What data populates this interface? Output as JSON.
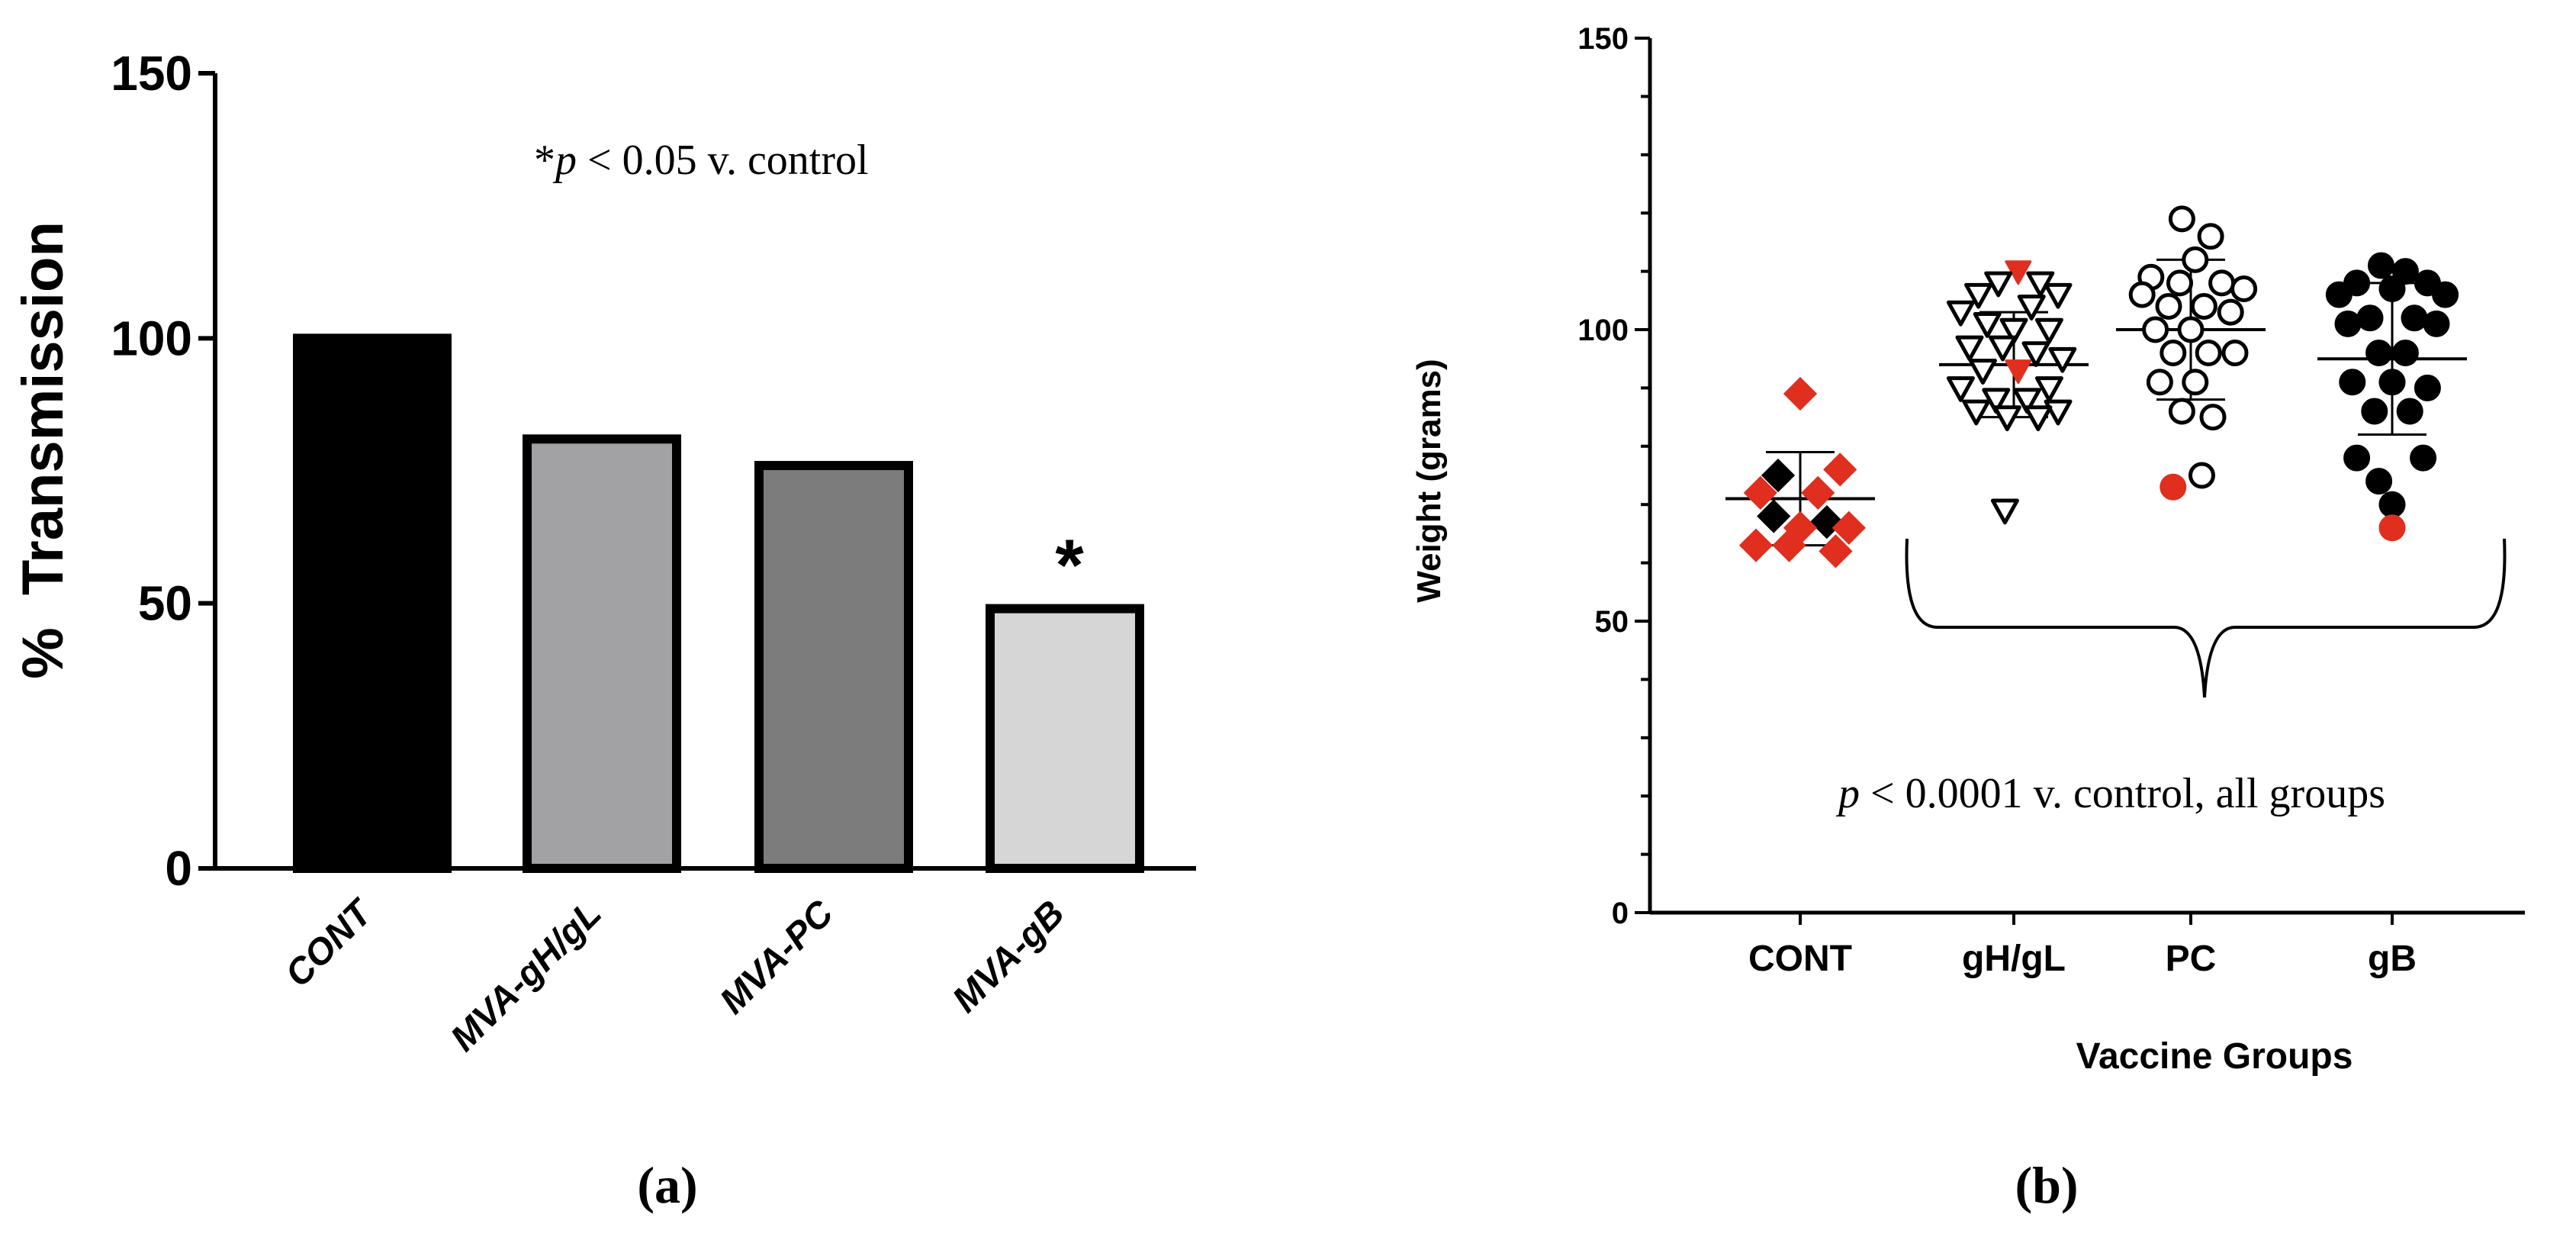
{
  "chart_data": [
    {
      "type": "bar",
      "panel_label": "(a)",
      "title": "",
      "xlabel": "",
      "ylabel": "%  Transmission",
      "ylim": [
        0,
        150
      ],
      "yticks": [
        0,
        50,
        100,
        150
      ],
      "categories": [
        "CONT",
        "MVA-gH/gL",
        "MVA-PC",
        "MVA-gB"
      ],
      "values": [
        100,
        81,
        76,
        49
      ],
      "bar_colors": [
        "#000000",
        "#a2a1a4",
        "#7c7c7c",
        "#d6d6d6"
      ],
      "significance": [
        "",
        "",
        "",
        "*"
      ],
      "annotation": {
        "prefix": "*",
        "p": "p",
        "rest": " < 0.05 v. control"
      }
    },
    {
      "type": "scatter",
      "panel_label": "(b)",
      "title": "",
      "xlabel": "Vaccine Groups",
      "ylabel": "Weight (grams)",
      "ylim": [
        0,
        150
      ],
      "yticks": [
        0,
        50,
        100,
        150
      ],
      "categories": [
        "CONT",
        "gH/gL",
        "PC",
        "gB"
      ],
      "series": [
        {
          "name": "CONT",
          "marker": "diamond",
          "mean": 71,
          "sd": 8,
          "points": [
            {
              "x": 0.0,
              "y": 89,
              "c": "red"
            },
            {
              "x": 0.18,
              "y": 76,
              "c": "red"
            },
            {
              "x": -0.1,
              "y": 75,
              "c": "black"
            },
            {
              "x": 0.08,
              "y": 72,
              "c": "red"
            },
            {
              "x": -0.18,
              "y": 72,
              "c": "red"
            },
            {
              "x": -0.12,
              "y": 68,
              "c": "black"
            },
            {
              "x": 0.12,
              "y": 67,
              "c": "black"
            },
            {
              "x": 0.0,
              "y": 66,
              "c": "red"
            },
            {
              "x": 0.22,
              "y": 66,
              "c": "red"
            },
            {
              "x": -0.2,
              "y": 63,
              "c": "red"
            },
            {
              "x": -0.05,
              "y": 63,
              "c": "red"
            },
            {
              "x": 0.16,
              "y": 62,
              "c": "red"
            }
          ]
        },
        {
          "name": "gH/gL",
          "marker": "triangle-down",
          "mean": 94,
          "sd": 9,
          "points": [
            {
              "x": 0.02,
              "y": 110,
              "c": "red-fill"
            },
            {
              "x": -0.07,
              "y": 108,
              "c": "open"
            },
            {
              "x": 0.12,
              "y": 108,
              "c": "open"
            },
            {
              "x": -0.16,
              "y": 106,
              "c": "open"
            },
            {
              "x": 0.2,
              "y": 106,
              "c": "open"
            },
            {
              "x": -0.24,
              "y": 103,
              "c": "open"
            },
            {
              "x": 0.08,
              "y": 104,
              "c": "open"
            },
            {
              "x": -0.12,
              "y": 101,
              "c": "open"
            },
            {
              "x": 0.0,
              "y": 100,
              "c": "open"
            },
            {
              "x": 0.16,
              "y": 100,
              "c": "open"
            },
            {
              "x": -0.2,
              "y": 97,
              "c": "open"
            },
            {
              "x": -0.05,
              "y": 97,
              "c": "open"
            },
            {
              "x": 0.1,
              "y": 96,
              "c": "open"
            },
            {
              "x": 0.22,
              "y": 95,
              "c": "open"
            },
            {
              "x": -0.14,
              "y": 93,
              "c": "open"
            },
            {
              "x": 0.02,
              "y": 93,
              "c": "red-fill"
            },
            {
              "x": -0.24,
              "y": 90,
              "c": "open"
            },
            {
              "x": 0.16,
              "y": 90,
              "c": "open"
            },
            {
              "x": -0.08,
              "y": 88,
              "c": "open"
            },
            {
              "x": 0.06,
              "y": 88,
              "c": "open"
            },
            {
              "x": -0.17,
              "y": 86,
              "c": "open"
            },
            {
              "x": 0.2,
              "y": 86,
              "c": "open"
            },
            {
              "x": -0.03,
              "y": 85,
              "c": "open"
            },
            {
              "x": 0.11,
              "y": 85,
              "c": "open"
            },
            {
              "x": -0.04,
              "y": 69,
              "c": "open"
            }
          ]
        },
        {
          "name": "PC",
          "marker": "circle",
          "mean": 100,
          "sd": 12,
          "points": [
            {
              "x": -0.04,
              "y": 119,
              "c": "open"
            },
            {
              "x": 0.09,
              "y": 116,
              "c": "open"
            },
            {
              "x": 0.02,
              "y": 112,
              "c": "open"
            },
            {
              "x": -0.18,
              "y": 109,
              "c": "open"
            },
            {
              "x": -0.05,
              "y": 108,
              "c": "open"
            },
            {
              "x": 0.14,
              "y": 108,
              "c": "open"
            },
            {
              "x": -0.22,
              "y": 106,
              "c": "open"
            },
            {
              "x": 0.24,
              "y": 107,
              "c": "open"
            },
            {
              "x": -0.1,
              "y": 104,
              "c": "open"
            },
            {
              "x": 0.06,
              "y": 104,
              "c": "open"
            },
            {
              "x": 0.18,
              "y": 103,
              "c": "open"
            },
            {
              "x": -0.16,
              "y": 100,
              "c": "open"
            },
            {
              "x": 0.0,
              "y": 100,
              "c": "open"
            },
            {
              "x": -0.08,
              "y": 96,
              "c": "open"
            },
            {
              "x": 0.08,
              "y": 96,
              "c": "open"
            },
            {
              "x": 0.2,
              "y": 96,
              "c": "open"
            },
            {
              "x": -0.14,
              "y": 91,
              "c": "open"
            },
            {
              "x": 0.02,
              "y": 91,
              "c": "open"
            },
            {
              "x": -0.04,
              "y": 86,
              "c": "open"
            },
            {
              "x": 0.1,
              "y": 85,
              "c": "open"
            },
            {
              "x": 0.05,
              "y": 75,
              "c": "open"
            },
            {
              "x": -0.08,
              "y": 73,
              "c": "red"
            }
          ]
        },
        {
          "name": "gB",
          "marker": "circle",
          "mean": 95,
          "sd": 13,
          "points": [
            {
              "x": -0.05,
              "y": 111,
              "c": "black"
            },
            {
              "x": 0.06,
              "y": 110,
              "c": "black"
            },
            {
              "x": -0.16,
              "y": 108,
              "c": "black"
            },
            {
              "x": 0.16,
              "y": 108,
              "c": "black"
            },
            {
              "x": 0.0,
              "y": 107,
              "c": "black"
            },
            {
              "x": -0.24,
              "y": 106,
              "c": "black"
            },
            {
              "x": 0.24,
              "y": 106,
              "c": "black"
            },
            {
              "x": -0.1,
              "y": 102,
              "c": "black"
            },
            {
              "x": 0.1,
              "y": 102,
              "c": "black"
            },
            {
              "x": -0.2,
              "y": 101,
              "c": "black"
            },
            {
              "x": 0.2,
              "y": 101,
              "c": "black"
            },
            {
              "x": -0.06,
              "y": 96,
              "c": "black"
            },
            {
              "x": 0.06,
              "y": 96,
              "c": "black"
            },
            {
              "x": -0.18,
              "y": 91,
              "c": "black"
            },
            {
              "x": 0.0,
              "y": 91,
              "c": "black"
            },
            {
              "x": 0.16,
              "y": 90,
              "c": "black"
            },
            {
              "x": -0.08,
              "y": 86,
              "c": "black"
            },
            {
              "x": 0.08,
              "y": 86,
              "c": "black"
            },
            {
              "x": -0.16,
              "y": 78,
              "c": "black"
            },
            {
              "x": 0.14,
              "y": 78,
              "c": "black"
            },
            {
              "x": -0.06,
              "y": 74,
              "c": "black"
            },
            {
              "x": 0.0,
              "y": 70,
              "c": "black"
            },
            {
              "x": 0.0,
              "y": 66,
              "c": "red"
            }
          ]
        }
      ],
      "bracket_from": "gH/gL",
      "bracket_to": "gB",
      "annotation": {
        "p": "p",
        "rest": " < 0.0001 v. control, all groups"
      }
    }
  ],
  "colors": {
    "red": "#e02e1f",
    "black": "#000000",
    "axis": "#000000"
  }
}
